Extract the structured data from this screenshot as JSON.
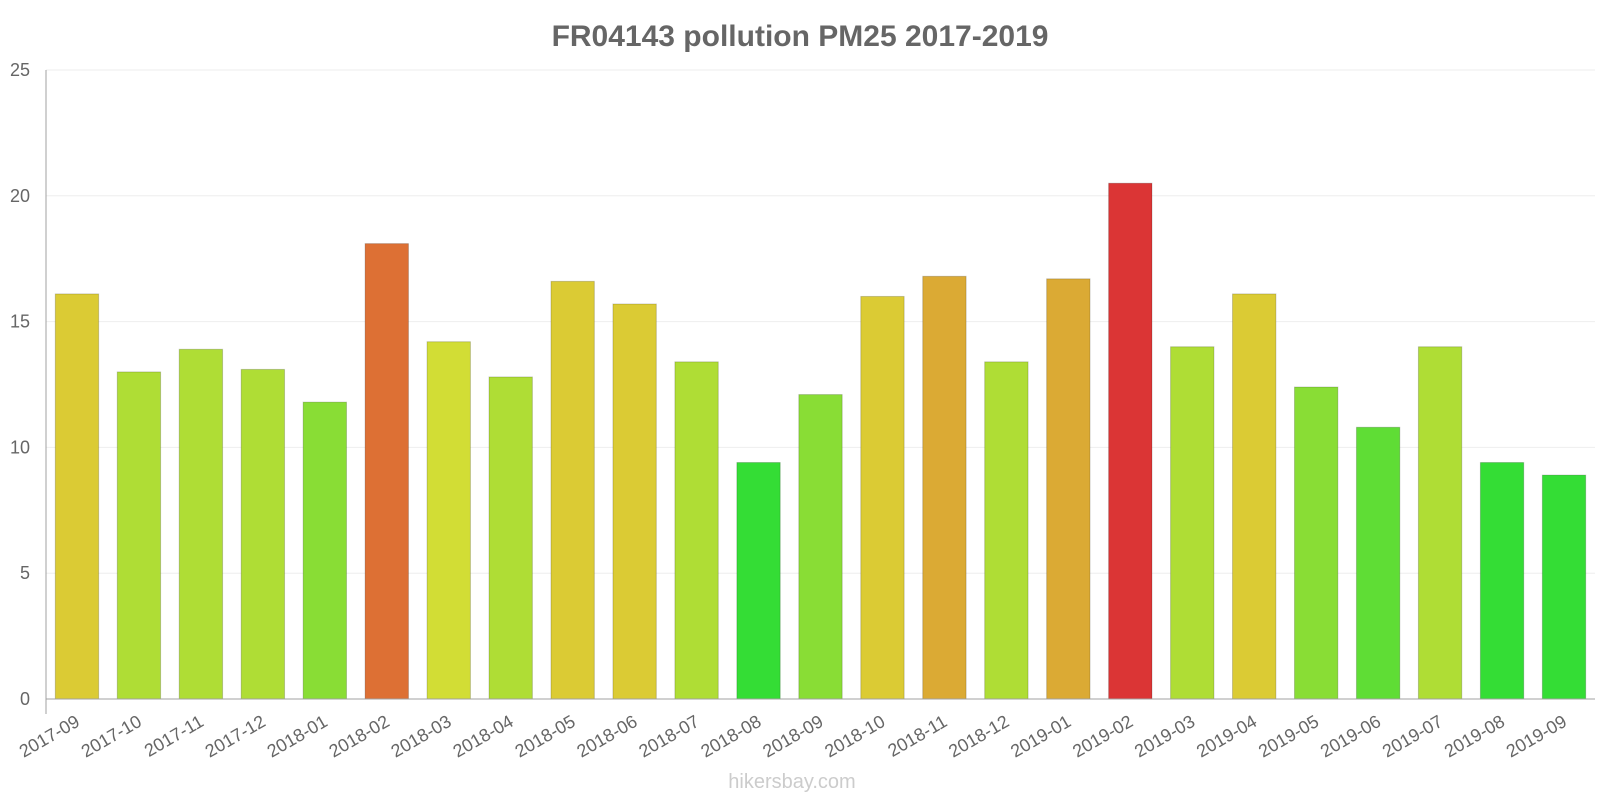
{
  "chart_data": {
    "type": "bar",
    "title": "FR04143 pollution PM25 2017-2019",
    "xlabel": "",
    "ylabel": "",
    "ylim": [
      0,
      25
    ],
    "yticks": [
      0,
      5,
      10,
      15,
      20,
      25
    ],
    "grid": true,
    "categories": [
      "2017-09",
      "2017-10",
      "2017-11",
      "2017-12",
      "2018-01",
      "2018-02",
      "2018-03",
      "2018-04",
      "2018-05",
      "2018-06",
      "2018-07",
      "2018-08",
      "2018-09",
      "2018-10",
      "2018-11",
      "2018-12",
      "2019-01",
      "2019-02",
      "2019-03",
      "2019-04",
      "2019-05",
      "2019-06",
      "2019-07",
      "2019-08",
      "2019-09"
    ],
    "values": [
      16.1,
      13.0,
      13.9,
      13.1,
      11.8,
      18.1,
      14.2,
      12.8,
      16.6,
      15.7,
      13.4,
      9.4,
      12.1,
      16.0,
      16.8,
      13.4,
      16.7,
      20.5,
      14.0,
      16.1,
      12.4,
      10.8,
      14.0,
      9.4,
      8.9
    ],
    "colors": [
      "#dbcb34",
      "#afdd35",
      "#afdd35",
      "#afdd35",
      "#89dd35",
      "#dd7034",
      "#d2dd35",
      "#afdd35",
      "#dbcb34",
      "#dbcb34",
      "#afdd35",
      "#34dd35",
      "#89dd35",
      "#dbcb34",
      "#dbaa34",
      "#afdd35",
      "#dbaa34",
      "#db3535",
      "#afdd35",
      "#dbcb34",
      "#89dd35",
      "#5fdd35",
      "#afdd35",
      "#34dd35",
      "#34dd35"
    ]
  },
  "watermark": "hikersbay.com"
}
